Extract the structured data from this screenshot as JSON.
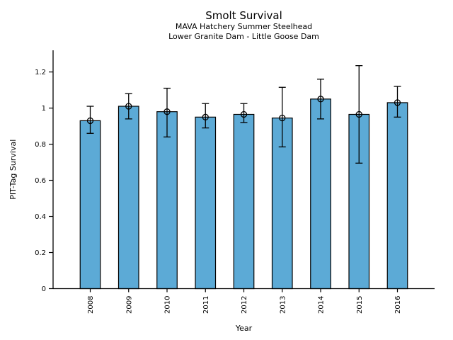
{
  "chart_data": {
    "type": "bar",
    "title": "Smolt Survival",
    "subtitle_line1": "MAVA Hatchery Summer Steelhead",
    "subtitle_line2": "Lower Granite Dam - Little Goose Dam",
    "xlabel": "Year",
    "ylabel": "PIT-Tag Survival",
    "categories": [
      "2008",
      "2009",
      "2010",
      "2011",
      "2012",
      "2013",
      "2014",
      "2015",
      "2016"
    ],
    "series": [
      {
        "name": "PIT-Tag Survival",
        "values": [
          0.93,
          1.01,
          0.98,
          0.95,
          0.965,
          0.945,
          1.05,
          0.965,
          1.03
        ],
        "error_low": [
          0.86,
          0.94,
          0.84,
          0.89,
          0.92,
          0.785,
          0.94,
          0.695,
          0.95
        ],
        "error_high": [
          1.01,
          1.08,
          1.11,
          1.025,
          1.025,
          1.115,
          1.16,
          1.235,
          1.12
        ]
      }
    ],
    "ylim": [
      0,
      1.32
    ],
    "yticks": [
      0,
      0.2,
      0.4,
      0.6,
      0.8,
      1,
      1.2
    ],
    "ytick_labels": [
      "0",
      "0.2",
      "0.4",
      "0.6",
      "0.8",
      "1",
      "1.2"
    ],
    "grid": false,
    "legend": false,
    "bar_color": "#5CAAD6",
    "bar_edge_color": "#000000",
    "error_bar_color": "#000000",
    "marker": "open-circle"
  }
}
